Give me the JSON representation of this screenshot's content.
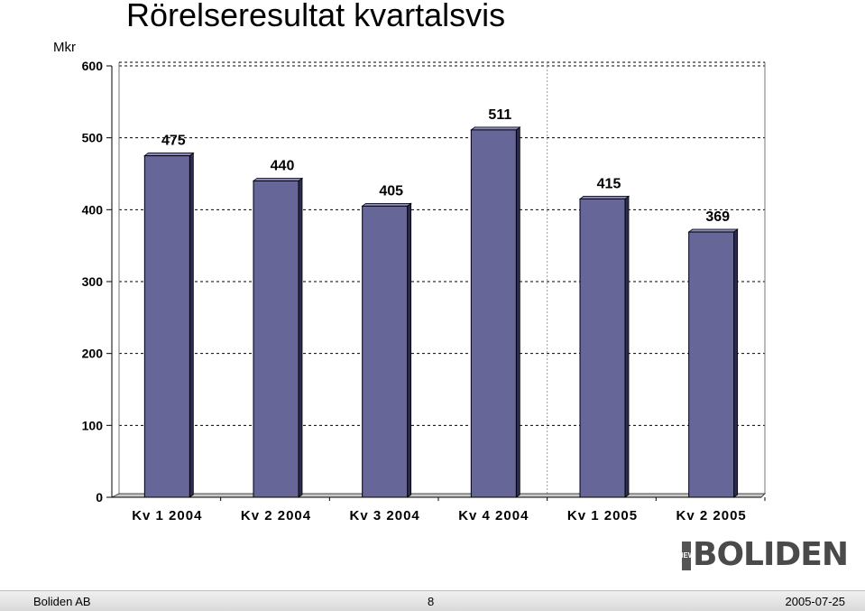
{
  "page": {
    "title": "Rörelseresultat kvartalsvis",
    "unit": "Mkr"
  },
  "logo": {
    "small_text": "NEW",
    "text": "BOLIDEN"
  },
  "footer": {
    "company": "Boliden AB",
    "page_number": "8",
    "date": "2005-07-25"
  },
  "colors": {
    "bar_fill": "#666699",
    "bar_side": "#2b2b55",
    "bar_top": "#8a8ab8",
    "grid": "#000000"
  },
  "chart_data": {
    "type": "bar",
    "title": "Rörelseresultat kvartalsvis",
    "ylabel": "Mkr",
    "xlabel": "",
    "categories": [
      "Kv 1 2004",
      "Kv 2 2004",
      "Kv 3 2004",
      "Kv 4 2004",
      "Kv 1 2005",
      "Kv 2 2005"
    ],
    "values": [
      475,
      440,
      405,
      511,
      415,
      369
    ],
    "data_labels": [
      "475",
      "440",
      "405",
      "511",
      "415",
      "369"
    ],
    "ylim": [
      0,
      600
    ],
    "yticks": [
      0,
      100,
      200,
      300,
      400,
      500,
      600
    ],
    "grid": "horizontal dashed",
    "legend": "none"
  }
}
